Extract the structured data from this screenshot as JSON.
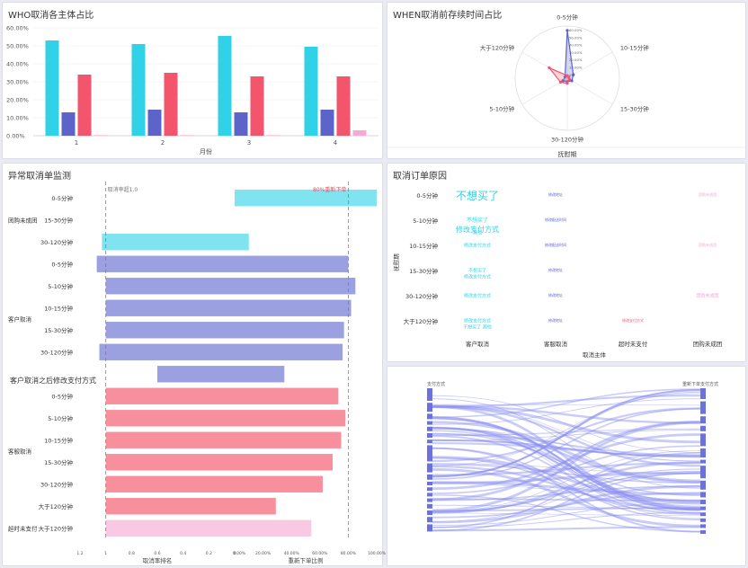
{
  "panels": {
    "who_title": "WHO取消各主体占比",
    "when_title": "WHEN取消前存续时间占比",
    "abnormal_title": "异常取消单监测",
    "reason_title": "取消订单原因"
  },
  "colors": {
    "cyan": "#2fd2e6",
    "indigo": "#5c64c9",
    "red": "#f3566c",
    "pink": "#f6a9d2",
    "cyan_light": "#7fe4f0",
    "indigo_light": "#9ba0e0",
    "red_light": "#f88f9c",
    "pink_light": "#f9c9e4",
    "sankey": "#8a8ef0"
  },
  "chart_data": [
    {
      "id": "who",
      "type": "bar",
      "categories": [
        "1",
        "2",
        "3",
        "4"
      ],
      "xlabel": "月份",
      "ylim": [
        0,
        60
      ],
      "yticks": [
        "0.00%",
        "10.00%",
        "20.00%",
        "30.00%",
        "40.00%",
        "50.00%",
        "60.00%"
      ],
      "series": [
        {
          "values": [
            53,
            51,
            55.5,
            49.5
          ],
          "color": "cyan"
        },
        {
          "values": [
            13,
            14.5,
            13,
            14.5
          ],
          "color": "indigo"
        },
        {
          "values": [
            34,
            35,
            33,
            33
          ],
          "color": "red"
        },
        {
          "values": [
            0.3,
            0.3,
            0.3,
            3
          ],
          "color": "pink"
        }
      ]
    },
    {
      "id": "when",
      "type": "radar",
      "axes": [
        "0-5分钟",
        "10-15分钟",
        "15-30分钟",
        "30-120分钟",
        "5-10分钟",
        "大于120分钟"
      ],
      "ring_labels": [
        "60.00%",
        "50.00%",
        "40.00%",
        "30.00%",
        "20.00%",
        "10.00%",
        "0%"
      ],
      "xlabel": "抚慰期",
      "series": [
        {
          "values": [
            55,
            8,
            6,
            4,
            6,
            3
          ],
          "color": "indigo"
        },
        {
          "values": [
            3,
            2,
            3,
            6,
            9,
            24
          ],
          "color": "red"
        }
      ]
    },
    {
      "id": "abnormal",
      "type": "bar",
      "orientation": "horizontal",
      "left_axis_label": "取消率排名",
      "right_axis_label": "重新下单比例",
      "left_ticks": [
        "1.2",
        "1",
        "0.8",
        "0.6",
        "0.4",
        "0.2",
        "0"
      ],
      "right_ticks": [
        "0.00%",
        "20.00%",
        "40.00%",
        "60.00%",
        "80.00%",
        "100.00%"
      ],
      "ref_left_label": "取消率超1.0",
      "ref_right_label": "80%重新下单",
      "overlay_title": "客户取消之后修改支付方式",
      "groups": [
        {
          "label": "团购未成团",
          "rows": [
            {
              "label": "0-5分钟",
              "left": 0,
              "right": 100,
              "color": "cyan"
            },
            {
              "label": "15-30分钟",
              "left": 0,
              "right": 0,
              "color": "cyan"
            },
            {
              "label": "30-120分钟",
              "left": 1.03,
              "right": 10,
              "color": "cyan"
            }
          ]
        },
        {
          "label": "客户取消",
          "rows": [
            {
              "label": "0-5分钟",
              "left": 1.07,
              "right": 80,
              "color": "indigo"
            },
            {
              "label": "5-10分钟",
              "left": 1.0,
              "right": 85,
              "color": "indigo"
            },
            {
              "label": "10-15分钟",
              "left": 1.0,
              "right": 82,
              "color": "indigo"
            },
            {
              "label": "15-30分钟",
              "left": 1.0,
              "right": 77,
              "color": "indigo"
            },
            {
              "label": "30-120分钟",
              "left": 1.05,
              "right": 76,
              "color": "indigo"
            },
            {
              "label": "",
              "left": 0.6,
              "right": 35,
              "color": "indigo"
            }
          ]
        },
        {
          "label": "客服取消",
          "rows": [
            {
              "label": "0-5分钟",
              "left": 1.0,
              "right": 73,
              "color": "red"
            },
            {
              "label": "5-10分钟",
              "left": 1.0,
              "right": 78,
              "color": "red"
            },
            {
              "label": "10-15分钟",
              "left": 1.0,
              "right": 75,
              "color": "red"
            },
            {
              "label": "15-30分钟",
              "left": 1.0,
              "right": 69,
              "color": "red"
            },
            {
              "label": "30-120分钟",
              "left": 1.0,
              "right": 62,
              "color": "red"
            },
            {
              "label": "大于120分钟",
              "left": 1.0,
              "right": 29,
              "color": "red"
            }
          ]
        },
        {
          "label": "超时未支付",
          "rows": [
            {
              "label": "大于120分钟",
              "left": 1.0,
              "right": 54,
              "color": "pink"
            }
          ]
        }
      ]
    },
    {
      "id": "reasons",
      "type": "table",
      "ylabel": "抚慰期",
      "xlabel": "取消主体",
      "columns": [
        "客户取消",
        "客服取消",
        "超时未支付",
        "团购未成团"
      ],
      "rows": [
        "0-5分钟",
        "5-10分钟",
        "10-15分钟",
        "15-30分钟",
        "30-120分钟",
        "大于120分钟"
      ],
      "words": [
        {
          "text": "不想买了",
          "row": 0,
          "col": 0,
          "size": 12,
          "color": "cyan"
        },
        {
          "text": "不想买了",
          "row": 1,
          "col": 0,
          "size": 6,
          "color": "cyan"
        },
        {
          "text": "修改支付方式",
          "row": 1,
          "col": 0,
          "size": 8,
          "color": "cyan"
        },
        {
          "text": "其他",
          "row": 1,
          "col": 0,
          "size": 5,
          "color": "cyan"
        },
        {
          "text": "修改支付方式",
          "row": 2,
          "col": 0,
          "size": 5,
          "color": "cyan"
        },
        {
          "text": "不想买了",
          "row": 3,
          "col": 0,
          "size": 5,
          "color": "cyan"
        },
        {
          "text": "修改支付方式",
          "row": 3,
          "col": 0,
          "size": 5,
          "color": "cyan"
        },
        {
          "text": "修改支付方式",
          "row": 4,
          "col": 0,
          "size": 5,
          "color": "cyan"
        },
        {
          "text": "修改支付方式",
          "row": 5,
          "col": 0,
          "size": 5,
          "color": "cyan"
        },
        {
          "text": "不想买了 其他",
          "row": 5,
          "col": 0,
          "size": 5,
          "color": "cyan"
        },
        {
          "text": "修改地址",
          "row": 0,
          "col": 1,
          "size": 4,
          "color": "indigo"
        },
        {
          "text": "修改配送时间",
          "row": 1,
          "col": 1,
          "size": 4,
          "color": "indigo"
        },
        {
          "text": "修改配送时间",
          "row": 2,
          "col": 1,
          "size": 4,
          "color": "indigo"
        },
        {
          "text": "修改地址",
          "row": 3,
          "col": 1,
          "size": 4,
          "color": "indigo"
        },
        {
          "text": "修改地址",
          "row": 4,
          "col": 1,
          "size": 4,
          "color": "indigo"
        },
        {
          "text": "修改地址",
          "row": 5,
          "col": 1,
          "size": 4,
          "color": "indigo"
        },
        {
          "text": "修改支付方式",
          "row": 5,
          "col": 2,
          "size": 4,
          "color": "red"
        },
        {
          "text": "团购未成团",
          "row": 0,
          "col": 3,
          "size": 4,
          "color": "pink"
        },
        {
          "text": "团购未成团",
          "row": 2,
          "col": 3,
          "size": 4,
          "color": "pink"
        },
        {
          "text": "团购未成团",
          "row": 4,
          "col": 3,
          "size": 5,
          "color": "pink"
        }
      ]
    },
    {
      "id": "flow",
      "type": "sankey",
      "left_label": "支付方式",
      "right_label": "重新下单支付方式"
    }
  ]
}
